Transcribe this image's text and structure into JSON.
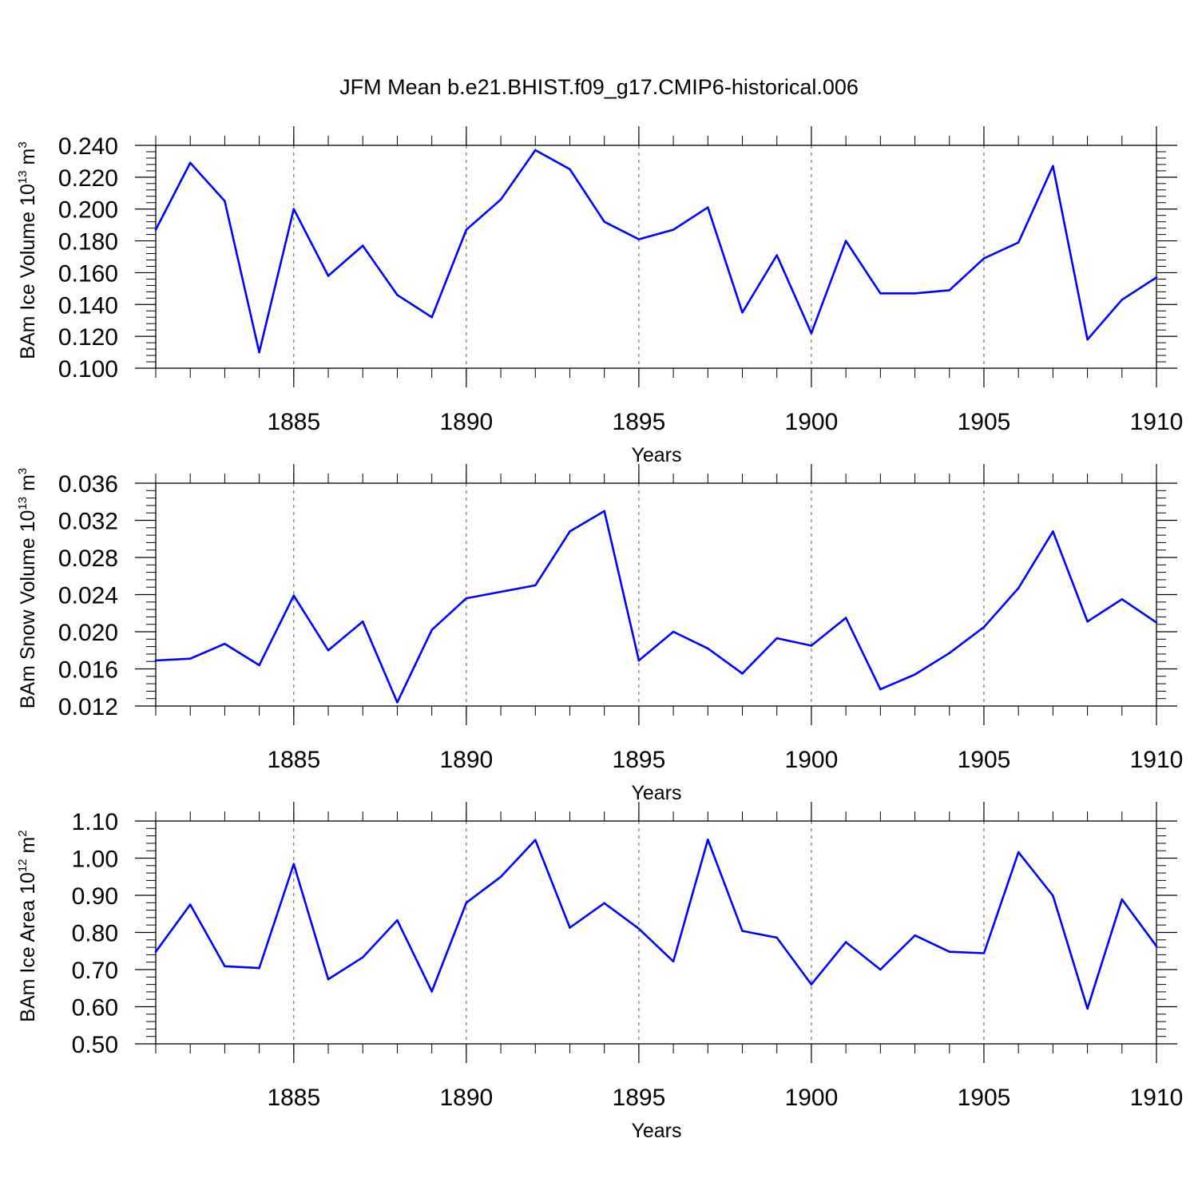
{
  "figure": {
    "title": "JFM Mean b.e21.BHIST.f09_g17.CMIP6-historical.006"
  },
  "chart_data": [
    {
      "type": "line",
      "ylabel": {
        "prefix": "BAm Ice Volume 10",
        "exponent": "13",
        "unit_base": " m",
        "unit_exponent": "3"
      },
      "xlabel": "Years",
      "xlim": [
        1881,
        1910
      ],
      "ylim": [
        0.1,
        0.24
      ],
      "xticks": [
        1885,
        1890,
        1895,
        1900,
        1905,
        1910
      ],
      "yticks": [
        "0.100",
        "0.120",
        "0.140",
        "0.160",
        "0.180",
        "0.200",
        "0.220",
        "0.240"
      ],
      "color": "#0000ff",
      "grid": "vertical dashed at major x ticks",
      "x": [
        1881,
        1882,
        1883,
        1884,
        1885,
        1886,
        1887,
        1888,
        1889,
        1890,
        1891,
        1892,
        1893,
        1894,
        1895,
        1896,
        1897,
        1898,
        1899,
        1900,
        1901,
        1902,
        1903,
        1904,
        1905,
        1906,
        1907,
        1908,
        1909,
        1910
      ],
      "values": [
        0.187,
        0.229,
        0.205,
        0.11,
        0.2,
        0.158,
        0.177,
        0.146,
        0.132,
        0.187,
        0.206,
        0.237,
        0.225,
        0.192,
        0.181,
        0.187,
        0.201,
        0.135,
        0.171,
        0.122,
        0.18,
        0.147,
        0.147,
        0.149,
        0.169,
        0.179,
        0.227,
        0.118,
        0.143,
        0.157
      ]
    },
    {
      "type": "line",
      "ylabel": {
        "prefix": "BAm Snow Volume 10",
        "exponent": "13",
        "unit_base": " m",
        "unit_exponent": "3"
      },
      "xlabel": "Years",
      "xlim": [
        1881,
        1910
      ],
      "ylim": [
        0.012,
        0.036
      ],
      "xticks": [
        1885,
        1890,
        1895,
        1900,
        1905,
        1910
      ],
      "yticks": [
        "0.012",
        "0.016",
        "0.020",
        "0.024",
        "0.028",
        "0.032",
        "0.036"
      ],
      "color": "#0000ff",
      "grid": "vertical dashed at major x ticks",
      "x": [
        1881,
        1882,
        1883,
        1884,
        1885,
        1886,
        1887,
        1888,
        1889,
        1890,
        1891,
        1892,
        1893,
        1894,
        1895,
        1896,
        1897,
        1898,
        1899,
        1900,
        1901,
        1902,
        1903,
        1904,
        1905,
        1906,
        1907,
        1908,
        1909,
        1910
      ],
      "values": [
        0.0169,
        0.0171,
        0.0187,
        0.0164,
        0.0239,
        0.018,
        0.0211,
        0.0124,
        0.0202,
        0.0236,
        0.0243,
        0.025,
        0.0308,
        0.033,
        0.0169,
        0.02,
        0.0182,
        0.0155,
        0.0193,
        0.0185,
        0.0215,
        0.0138,
        0.0154,
        0.0177,
        0.0205,
        0.0247,
        0.0308,
        0.0211,
        0.0235,
        0.021
      ]
    },
    {
      "type": "line",
      "ylabel": {
        "prefix": "BAm Ice Area 10",
        "exponent": "12",
        "unit_base": " m",
        "unit_exponent": "2"
      },
      "xlabel": "Years",
      "xlim": [
        1881,
        1910
      ],
      "ylim": [
        0.5,
        1.1
      ],
      "xticks": [
        1885,
        1890,
        1895,
        1900,
        1905,
        1910
      ],
      "yticks": [
        "0.50",
        "0.60",
        "0.70",
        "0.80",
        "0.90",
        "1.00",
        "1.10"
      ],
      "color": "#0000ff",
      "grid": "vertical dashed at major x ticks",
      "x": [
        1881,
        1882,
        1883,
        1884,
        1885,
        1886,
        1887,
        1888,
        1889,
        1890,
        1891,
        1892,
        1893,
        1894,
        1895,
        1896,
        1897,
        1898,
        1899,
        1900,
        1901,
        1902,
        1903,
        1904,
        1905,
        1906,
        1907,
        1908,
        1909,
        1910
      ],
      "values": [
        0.748,
        0.875,
        0.709,
        0.704,
        0.984,
        0.674,
        0.733,
        0.833,
        0.641,
        0.88,
        0.95,
        1.049,
        0.813,
        0.879,
        0.81,
        0.722,
        1.05,
        0.804,
        0.786,
        0.66,
        0.774,
        0.7,
        0.792,
        0.748,
        0.744,
        1.016,
        0.899,
        0.595,
        0.889,
        0.763
      ]
    }
  ]
}
